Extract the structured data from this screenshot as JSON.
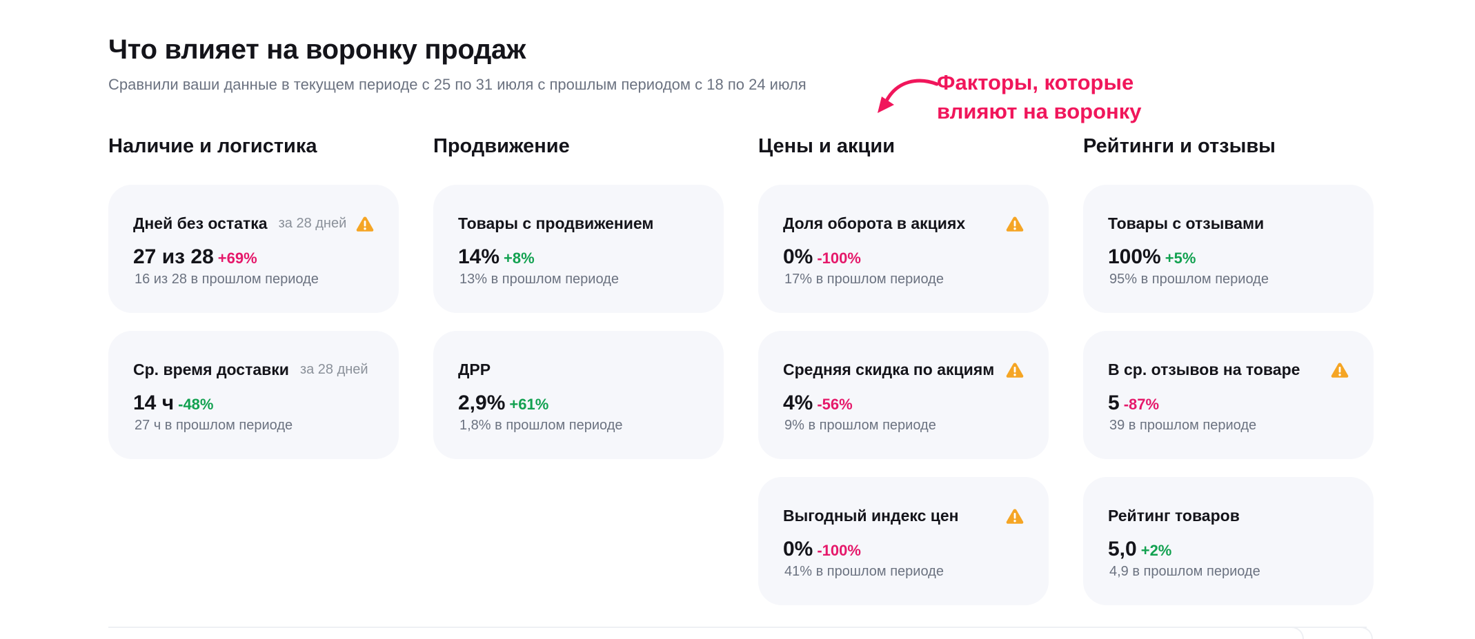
{
  "header": {
    "title": "Что влияет на воронку продаж",
    "subtitle": "Сравнили ваши данные в текущем периоде с 25 по 31 июля с прошлым периодом с 18 по 24 июля"
  },
  "annotation": {
    "line1": "Факторы, которые",
    "line2": "влияют на воронку",
    "color": "#f0165b"
  },
  "colors": {
    "positive": "#12a150",
    "negative": "#e5186a",
    "warning": "#f5a524",
    "card_bg": "#f6f7fb"
  },
  "columns": [
    {
      "title": "Наличие и логистика",
      "cards": [
        {
          "title": "Дней без остатка",
          "period": "за 28 дней",
          "warning": true,
          "icon": "warning-icon",
          "value": "27 из 28",
          "delta": "+69%",
          "delta_type": "neg",
          "prev": "16 из 28 в прошлом периоде"
        },
        {
          "title": "Ср. время доставки",
          "period": "за 28 дней",
          "warning": false,
          "value": "14 ч",
          "delta": "-48%",
          "delta_type": "pos",
          "prev": "27 ч в прошлом периоде"
        }
      ]
    },
    {
      "title": "Продвижение",
      "cards": [
        {
          "title": "Товары с продвижением",
          "period": "",
          "warning": false,
          "value": "14%",
          "delta": "+8%",
          "delta_type": "pos",
          "prev": "13% в прошлом периоде"
        },
        {
          "title": "ДРР",
          "period": "",
          "warning": false,
          "value": "2,9%",
          "delta": "+61%",
          "delta_type": "pos",
          "prev": "1,8% в прошлом периоде"
        }
      ]
    },
    {
      "title": "Цены и акции",
      "cards": [
        {
          "title": "Доля оборота в акциях",
          "period": "",
          "warning": true,
          "icon": "warning-icon",
          "value": "0%",
          "delta": "-100%",
          "delta_type": "neg",
          "prev": "17% в прошлом периоде"
        },
        {
          "title": "Средняя скидка по акциям",
          "period": "",
          "warning": true,
          "icon": "warning-icon",
          "value": "4%",
          "delta": "-56%",
          "delta_type": "neg",
          "prev": "9% в прошлом периоде"
        },
        {
          "title": "Выгодный индекс цен",
          "period": "",
          "warning": true,
          "icon": "warning-icon",
          "value": "0%",
          "delta": "-100%",
          "delta_type": "neg",
          "prev": "41% в прошлом периоде"
        }
      ]
    },
    {
      "title": "Рейтинги и отзывы",
      "cards": [
        {
          "title": "Товары с отзывами",
          "period": "",
          "warning": false,
          "value": "100%",
          "delta": "+5%",
          "delta_type": "pos",
          "prev": "95% в прошлом периоде"
        },
        {
          "title": "В ср. отзывов на товаре",
          "period": "",
          "warning": true,
          "icon": "warning-icon",
          "value": "5",
          "delta": "-87%",
          "delta_type": "neg",
          "prev": "39 в прошлом периоде"
        },
        {
          "title": "Рейтинг товаров",
          "period": "",
          "warning": false,
          "value": "5,0",
          "delta": "+2%",
          "delta_type": "pos",
          "prev": "4,9 в прошлом периоде"
        }
      ]
    }
  ]
}
